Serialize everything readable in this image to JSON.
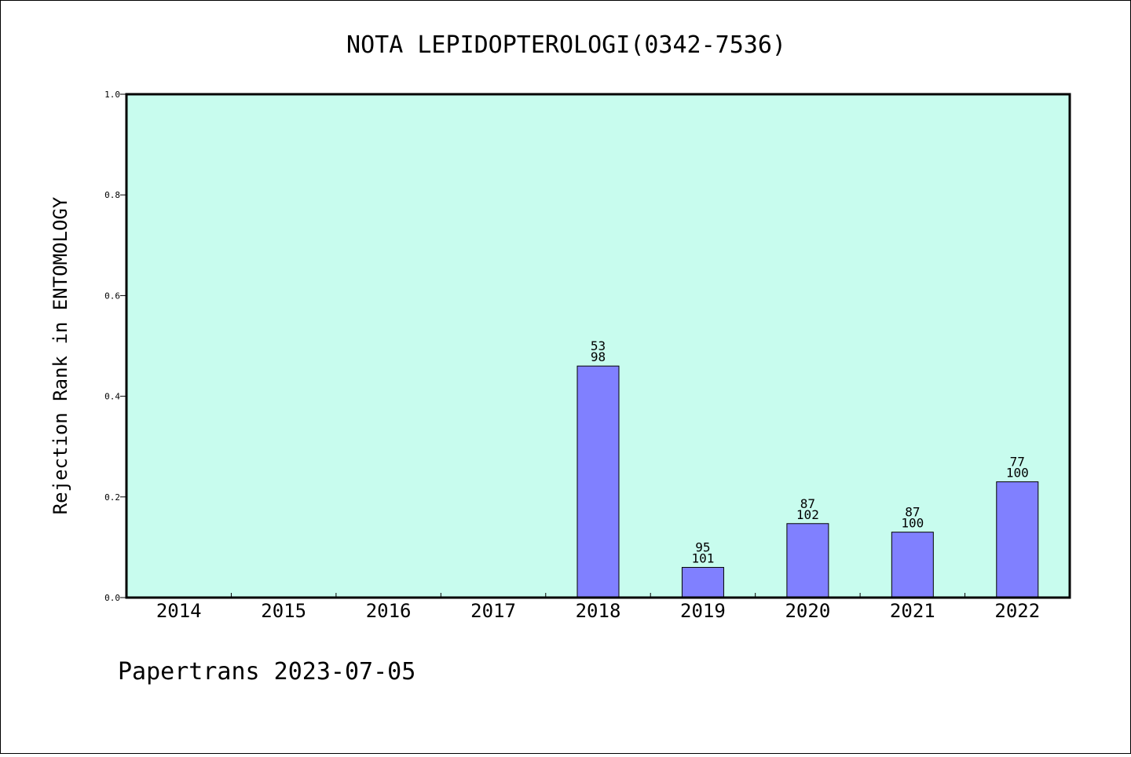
{
  "chart_data": {
    "type": "bar",
    "title": "NOTA LEPIDOPTEROLOGI(0342-7536)",
    "xlabel": "",
    "ylabel": "Rejection Rank in ENTOMOLOGY",
    "ylim": [
      0,
      1.0
    ],
    "yticks": [
      "0.0",
      "0.2",
      "0.4",
      "0.6",
      "0.8",
      "1.0"
    ],
    "categories": [
      "2014",
      "2015",
      "2016",
      "2017",
      "2018",
      "2019",
      "2020",
      "2021",
      "2022"
    ],
    "values": [
      null,
      null,
      null,
      null,
      0.46,
      0.06,
      0.147,
      0.13,
      0.23
    ],
    "labels_top": [
      "",
      "",
      "",
      "",
      "53",
      "95",
      "87",
      "87",
      "77"
    ],
    "labels_bottom": [
      "",
      "",
      "",
      "",
      "98",
      "101",
      "102",
      "100",
      "100"
    ],
    "colors": {
      "plot_bg": "#c8fcee",
      "bar": "#8080ff",
      "axis": "#000000"
    },
    "grid": false,
    "legend": "none"
  },
  "footer": "Papertrans 2023-07-05"
}
